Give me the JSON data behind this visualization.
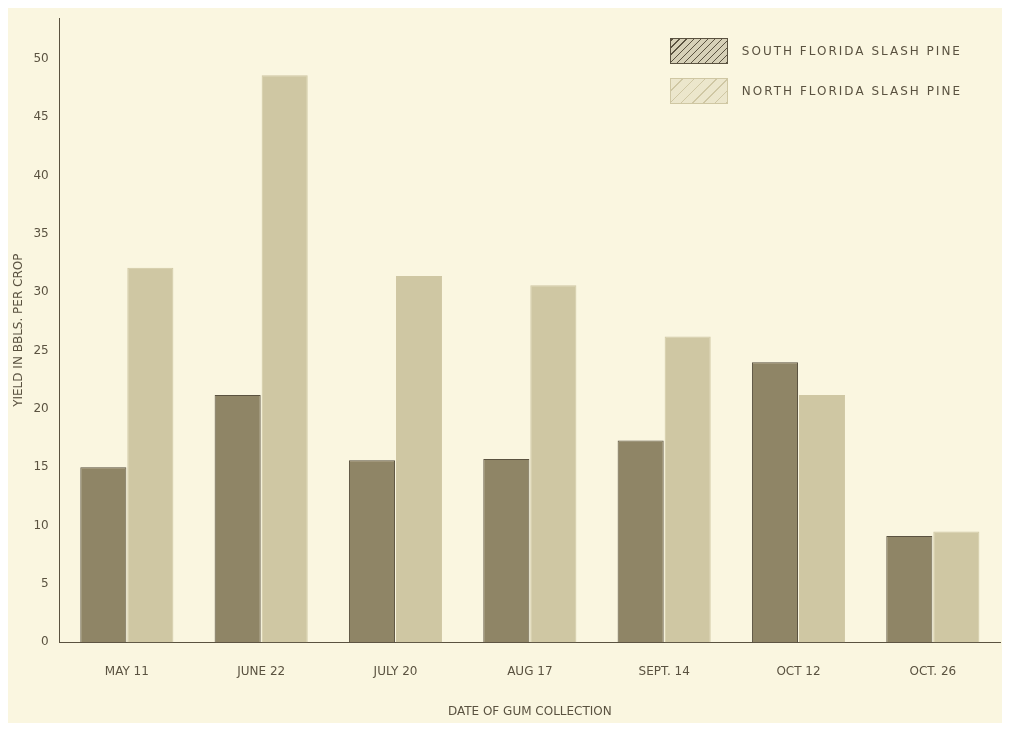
{
  "chart_data": {
    "type": "bar",
    "xlabel": "DATE OF GUM COLLECTION",
    "ylabel": "YIELD IN BBLS. PER CROP",
    "categories": [
      "MAY 11",
      "JUNE 22",
      "JULY 20",
      "AUG 17",
      "SEPT. 14",
      "OCT 12",
      "OCT. 26"
    ],
    "series": [
      {
        "name": "SOUTH FLORIDA SLASH PINE",
        "color": "#8f8566",
        "values": [
          15.0,
          21.2,
          15.6,
          15.7,
          17.3,
          24.0,
          9.1
        ]
      },
      {
        "name": "NORTH FLORIDA SLASH PINE",
        "color": "#cfc7a3",
        "values": [
          32.1,
          48.6,
          31.4,
          30.6,
          26.2,
          21.2,
          9.5
        ]
      }
    ],
    "ylim": [
      0,
      53.5
    ],
    "yticks": [
      0,
      5,
      10,
      15,
      20,
      25,
      30,
      35,
      40,
      45,
      50
    ],
    "grid": false,
    "legend": "top right"
  }
}
